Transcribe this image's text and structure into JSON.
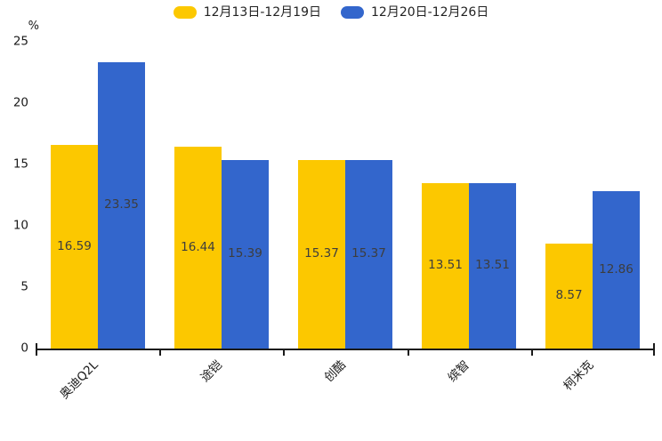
{
  "chart_data": {
    "type": "bar",
    "title": "",
    "ylabel": "%",
    "ylim": [
      0,
      25
    ],
    "yticks": [
      0,
      5,
      10,
      15,
      20,
      25
    ],
    "grid": false,
    "legend_position": "top-center",
    "value_labels": "centered inside bars",
    "categories": [
      "奥迪Q2L",
      "途铠",
      "创酷",
      "缤智",
      "柯米克"
    ],
    "series": [
      {
        "name": "12月13日-12月19日",
        "color": "#FCC800",
        "values": [
          16.59,
          16.44,
          15.37,
          13.51,
          8.57
        ]
      },
      {
        "name": "12月20日-12月26日",
        "color": "#3366CC",
        "values": [
          23.35,
          15.39,
          15.37,
          13.51,
          12.86
        ]
      }
    ]
  },
  "colors": {
    "axis": "#1a1a1a",
    "value_label_text": "#3d3d3d",
    "background": "#ffffff"
  }
}
